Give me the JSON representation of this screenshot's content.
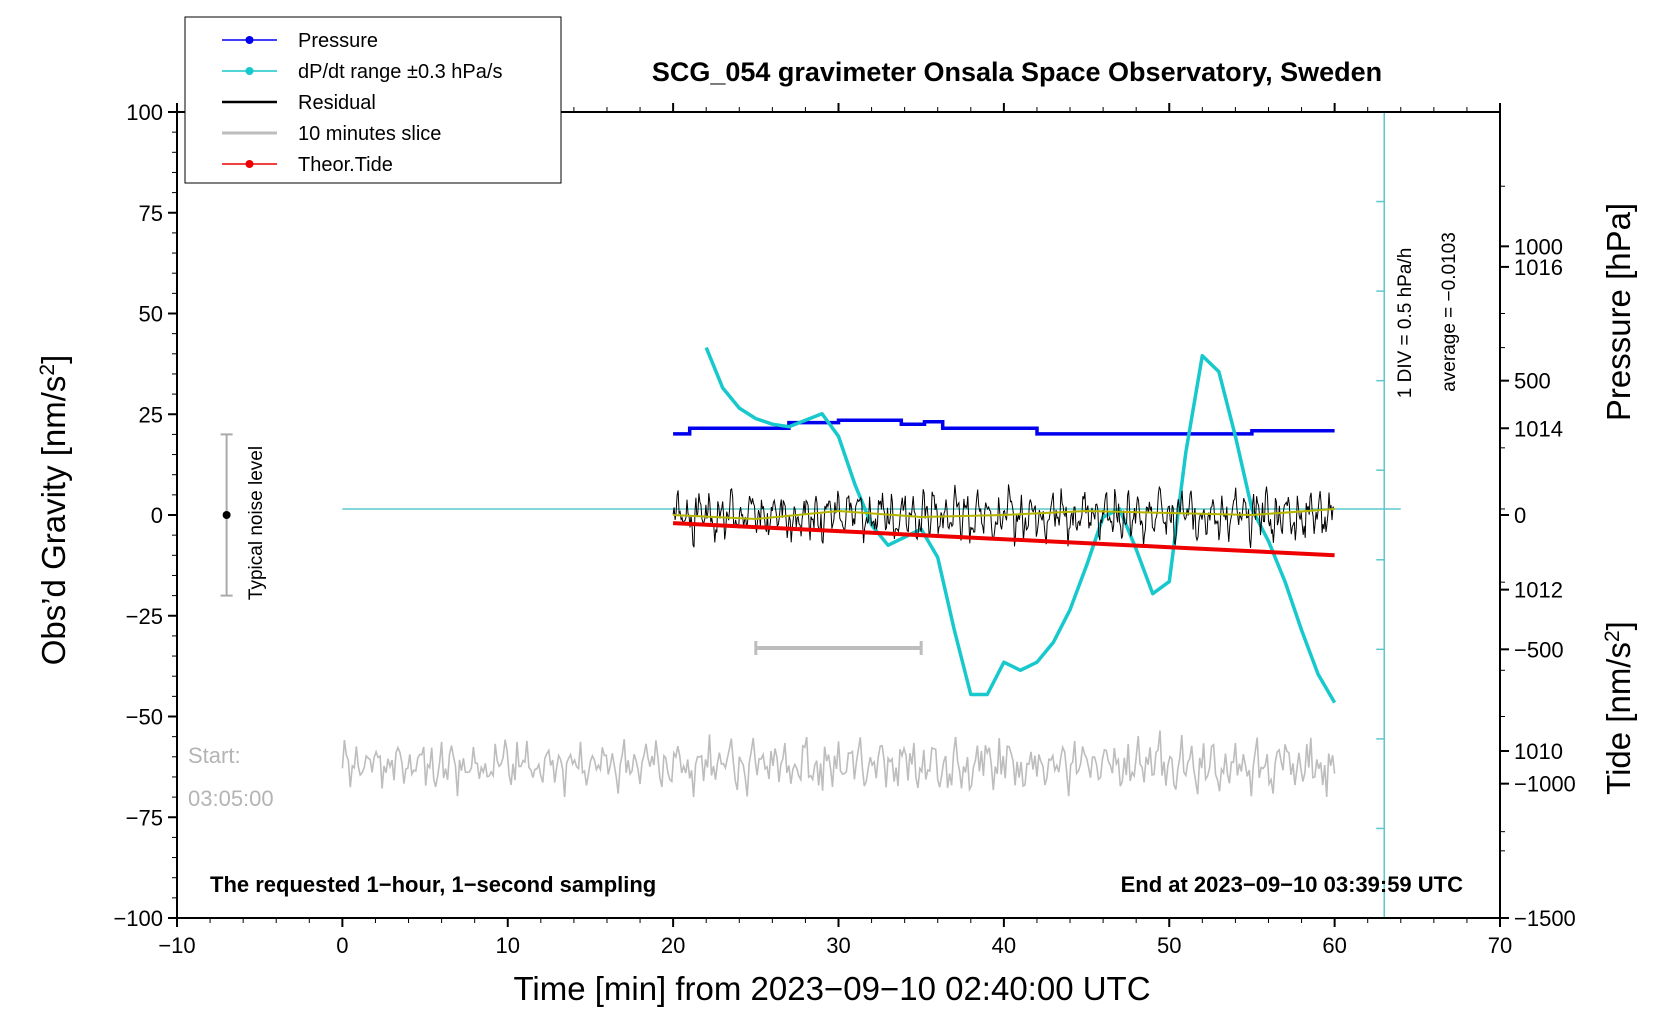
{
  "chart_data": {
    "type": "line",
    "title": "SCG_054 gravimeter Onsala Space Observatory, Sweden",
    "xlabel": "Time [min] from 2023−09−10 02:40:00 UTC",
    "ylabel_left_main": "Obs’d Gravity [nm/s",
    "ylabel_left_sup": "2",
    "ylabel_left_close": "]",
    "ylabel_right_pressure": "Pressure [hPa]",
    "ylabel_right_tide_main": "Tide [nm/s",
    "ylabel_right_tide_sup": "2",
    "ylabel_right_tide_close": "]",
    "xlim": [
      -10,
      70
    ],
    "ylim": [
      -100,
      100
    ],
    "pressure_ylim": [
      1007.93,
      1017.92
    ],
    "tide_ylim": [
      -1500,
      1500
    ],
    "x_ticks": [
      -10,
      0,
      10,
      20,
      30,
      40,
      50,
      60,
      70
    ],
    "x_tick_labels": [
      "−10",
      "0",
      "10",
      "20",
      "30",
      "40",
      "50",
      "60",
      "70"
    ],
    "y_ticks": [
      100,
      75,
      50,
      25,
      0,
      -25,
      -50,
      -75,
      -100
    ],
    "y_tick_labels": [
      "100",
      "75",
      "50",
      "25",
      "0",
      "−25",
      "−50",
      "−75",
      "−100"
    ],
    "pressure_ticks": [
      1016,
      1014,
      1012,
      1010
    ],
    "pressure_tick_labels": [
      "1016",
      "1014",
      "1012",
      "1010"
    ],
    "tide_ticks": [
      1000,
      500,
      0,
      -500,
      -1000,
      -1500
    ],
    "tide_tick_labels": [
      "1000",
      "500",
      "0",
      "−500",
      "−1000",
      "−1500"
    ],
    "legend": {
      "position": "top-left",
      "entries": [
        {
          "label": "Pressure",
          "color": "#0000ee",
          "marker": true
        },
        {
          "label": "dP/dt range ±0.3 hPa/s",
          "color": "#17c9cc",
          "marker": true
        },
        {
          "label": "Residual",
          "color": "#000000",
          "marker": false
        },
        {
          "label": "10 minutes slice",
          "color": "#bdbdbd",
          "marker": false
        },
        {
          "label": "Theor.Tide",
          "color": "#ee0000",
          "marker": true
        }
      ]
    },
    "series": [
      {
        "name": "Pressure",
        "axis": "pressure",
        "color": "#0000ee",
        "x": [
          20,
          21,
          21,
          27,
          27,
          30,
          30,
          33.8,
          33.8,
          35.2,
          35.2,
          36.3,
          36.3,
          42,
          42,
          55,
          55,
          60
        ],
        "y": [
          1013.93,
          1013.93,
          1014.0,
          1014.0,
          1014.07,
          1014.07,
          1014.1,
          1014.1,
          1014.05,
          1014.05,
          1014.08,
          1014.08,
          1014.0,
          1014.0,
          1013.93,
          1013.93,
          1013.97,
          1013.97
        ]
      },
      {
        "name": "dP/dt range ±0.3 hPa/s",
        "axis": "pressure",
        "color": "#17c9cc",
        "x": [
          22,
          23,
          24,
          25,
          26,
          27,
          28,
          29,
          30,
          31,
          32,
          33,
          34,
          35,
          36,
          37,
          38,
          39,
          40,
          41,
          42,
          43,
          44,
          45,
          46,
          47,
          48,
          49,
          50,
          51,
          52,
          53,
          54,
          55,
          56,
          57,
          58,
          59,
          60
        ],
        "y": [
          1015.0,
          1014.5,
          1014.25,
          1014.12,
          1014.05,
          1014.02,
          1014.1,
          1014.18,
          1013.9,
          1013.3,
          1012.8,
          1012.55,
          1012.65,
          1012.75,
          1012.4,
          1011.5,
          1010.7,
          1010.7,
          1011.1,
          1011.0,
          1011.1,
          1011.35,
          1011.75,
          1012.3,
          1012.9,
          1013.0,
          1012.5,
          1011.95,
          1012.1,
          1013.7,
          1014.9,
          1014.7,
          1013.9,
          1013.0,
          1012.6,
          1012.1,
          1011.5,
          1010.95,
          1010.6
        ]
      },
      {
        "name": "Residual",
        "axis": "gravity",
        "color": "#000000",
        "x_start": 20,
        "x_end": 60,
        "y_center": 0,
        "y_amplitude": 6,
        "y_max": 11,
        "y_min": -9
      },
      {
        "name": "Residual smoothed",
        "axis": "gravity",
        "color": "#b5b500",
        "x": [
          20,
          25,
          30,
          35,
          40,
          45,
          50,
          55,
          60
        ],
        "y": [
          0,
          -1,
          1,
          -0.5,
          0,
          1,
          0.5,
          0,
          1.5
        ]
      },
      {
        "name": "10 minutes slice",
        "axis": "gravity",
        "color": "#bdbdbd",
        "x_start": 0,
        "x_end": 60,
        "y_center": -62,
        "y_amplitude": 6,
        "y_max": -50,
        "y_min": -70
      },
      {
        "name": "Theor.Tide",
        "axis": "tide",
        "color": "#ee0000",
        "x": [
          20,
          30,
          40,
          50,
          60
        ],
        "y": [
          -30,
          -60,
          -90,
          -120,
          -150
        ]
      }
    ],
    "dpdt_reference": {
      "pressure": 1013.0,
      "x_start": 0,
      "x_end": 64
    },
    "pressure_scale_bar": {
      "x": 63,
      "pressure_top": 1017.92,
      "pressure_bottom": 1007.93
    },
    "slice_window": {
      "x_start": 25,
      "x_end": 35,
      "y": -33
    },
    "noise_level": {
      "x": -7,
      "y": 0,
      "y_min": -20,
      "y_max": 20
    },
    "annotations": {
      "noise_label": "Typical noise level",
      "scale_div": "1 DIV = 0.5 hPa/h",
      "scale_avg": "average = −0.0103",
      "start_label": "Start:",
      "start_time": "03:05:00",
      "bottom_left": "The requested 1−hour, 1−second sampling",
      "bottom_right": "End at 2023−09−10 03:39:59 UTC"
    }
  }
}
